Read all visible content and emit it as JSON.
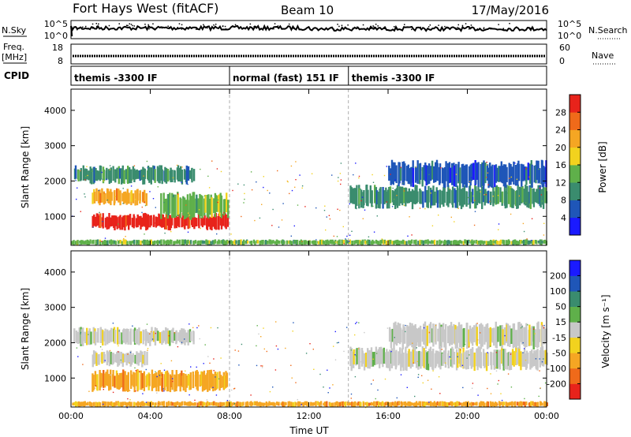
{
  "header": {
    "title": "Fort Hays West (fitACF)",
    "beam": "Beam 10",
    "date": "17/May/2016"
  },
  "strips": {
    "nsky_label": "N.Sky",
    "nsearch_label": "N.Search",
    "noise_ticks_left": [
      "10^5",
      "10^0"
    ],
    "noise_ticks_right": [
      "10^5",
      "10^0"
    ],
    "freq_label_1": "Freq.",
    "freq_label_2": "[MHz]",
    "freq_ticks": [
      "18",
      "8"
    ],
    "nave_label": "Nave",
    "nave_ticks": [
      "60",
      "0"
    ],
    "cpid_label": "CPID",
    "cpid_segments": [
      {
        "label": "themis -3300 IF",
        "start_h": 0,
        "end_h": 8
      },
      {
        "label": "normal (fast) 151 IF",
        "start_h": 8,
        "end_h": 14
      },
      {
        "label": "themis -3300 IF",
        "start_h": 14,
        "end_h": 24
      }
    ]
  },
  "chart_data": [
    {
      "type": "heatmap",
      "parameter": "power",
      "ylabel": "Slant Range [km]",
      "ylim": [
        180,
        4600
      ],
      "yticks": [
        "1000",
        "2000",
        "3000",
        "4000"
      ],
      "xlim": [
        "00:00",
        "24:00"
      ],
      "colorbar_label": "Power [dB]",
      "colorbar_ticks": [
        "4",
        "8",
        "12",
        "16",
        "20",
        "24",
        "28"
      ],
      "colorbar_colors": [
        "#1a1aff",
        "#1f56b8",
        "#3a8c6e",
        "#5fb04a",
        "#f2d21e",
        "#f5a623",
        "#ef6a1a",
        "#e8231b"
      ],
      "features": [
        {
          "start_h": 0.1,
          "end_h": 6.2,
          "range_km": [
            1900,
            2450
          ],
          "color_index": 2
        },
        {
          "start_h": 1.0,
          "end_h": 3.8,
          "range_km": [
            1300,
            1800
          ],
          "color_index": 5
        },
        {
          "start_h": 1.0,
          "end_h": 7.9,
          "range_km": [
            600,
            1100
          ],
          "color_index": 7
        },
        {
          "start_h": 4.5,
          "end_h": 7.9,
          "range_km": [
            900,
            1700
          ],
          "color_index": 3
        },
        {
          "start_h": 14.0,
          "end_h": 24.0,
          "range_km": [
            1200,
            1900
          ],
          "color_index": 2
        },
        {
          "start_h": 16.0,
          "end_h": 24.0,
          "range_km": [
            1800,
            2600
          ],
          "color_index": 1
        },
        {
          "start_h": 0.0,
          "end_h": 24.0,
          "range_km": [
            180,
            350
          ],
          "color_index": 3
        }
      ]
    },
    {
      "type": "heatmap",
      "parameter": "velocity",
      "ylabel": "Slant Range [km]",
      "ylim": [
        180,
        4600
      ],
      "yticks": [
        "1000",
        "2000",
        "3000",
        "4000"
      ],
      "xlabel": "Time UT",
      "xticks": [
        "00:00",
        "04:00",
        "08:00",
        "12:00",
        "16:00",
        "20:00",
        "00:00"
      ],
      "colorbar_label": "Velocity [m s⁻¹]",
      "colorbar_ticks": [
        "-200",
        "-100",
        "-50",
        "-15",
        "15",
        "50",
        "100",
        "200"
      ],
      "colorbar_colors": [
        "#e8231b",
        "#ef6a1a",
        "#f5a623",
        "#f2d21e",
        "#c8c8c8",
        "#5fb04a",
        "#3a8c6e",
        "#1f56b8",
        "#1a1aff"
      ],
      "features": [
        {
          "start_h": 0.1,
          "end_h": 6.2,
          "range_km": [
            1900,
            2450
          ],
          "color_index": 4
        },
        {
          "start_h": 1.0,
          "end_h": 3.8,
          "range_km": [
            1300,
            1800
          ],
          "color_index": 4
        },
        {
          "start_h": 1.0,
          "end_h": 7.9,
          "range_km": [
            600,
            1250
          ],
          "color_index": 2
        },
        {
          "start_h": 14.0,
          "end_h": 24.0,
          "range_km": [
            1200,
            1900
          ],
          "color_index": 4
        },
        {
          "start_h": 16.0,
          "end_h": 24.0,
          "range_km": [
            1800,
            2600
          ],
          "color_index": 4
        },
        {
          "start_h": 0.0,
          "end_h": 24.0,
          "range_km": [
            180,
            350
          ],
          "color_index": 2
        }
      ]
    }
  ]
}
